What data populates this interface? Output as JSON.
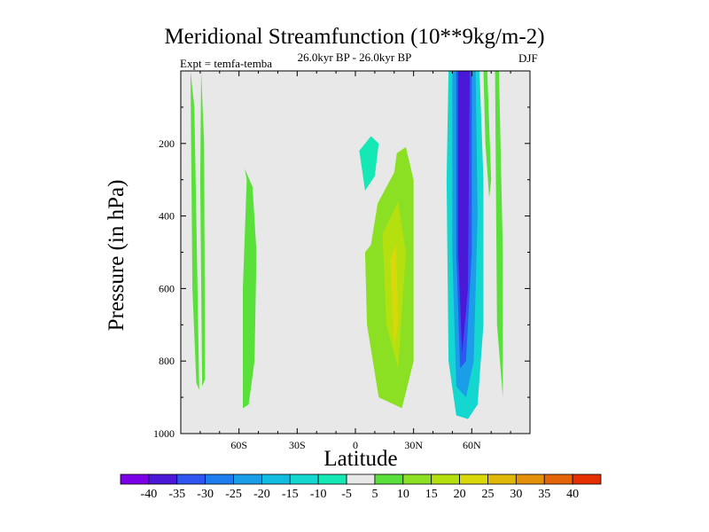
{
  "chart_data": {
    "type": "contour",
    "title": "Meridional Streamfunction (10**9kg/m-2)",
    "experiment_label": "Expt = temfa-temba",
    "period_label": "26.0kyr BP - 26.0kyr BP",
    "season_label": "DJF",
    "xlabel": "Latitude",
    "ylabel": "Pressure (in hPa)",
    "x_ticks": [
      {
        "value": -60,
        "label": "60S"
      },
      {
        "value": -30,
        "label": "30S"
      },
      {
        "value": 0,
        "label": "0"
      },
      {
        "value": 30,
        "label": "30N"
      },
      {
        "value": 60,
        "label": "60N"
      }
    ],
    "y_ticks": [
      {
        "value": 200,
        "label": "200"
      },
      {
        "value": 400,
        "label": "400"
      },
      {
        "value": 600,
        "label": "600"
      },
      {
        "value": 800,
        "label": "800"
      },
      {
        "value": 1000,
        "label": "1000"
      }
    ],
    "xlim": [
      -90,
      90
    ],
    "ylim": [
      0,
      1000
    ],
    "colorbar": {
      "levels": [
        -40,
        -35,
        -30,
        -25,
        -20,
        -15,
        -10,
        -5,
        5,
        10,
        15,
        20,
        25,
        30,
        35,
        40
      ],
      "colors": [
        "#7b00e6",
        "#4b18d8",
        "#2f56f0",
        "#1e7ef0",
        "#1a9ee8",
        "#12bce0",
        "#14d7d0",
        "#14e8b4",
        "#e8e8e8",
        "#5ae03a",
        "#8ce024",
        "#b4e010",
        "#d8d80a",
        "#e0b80a",
        "#e4900a",
        "#e46408",
        "#e43000"
      ]
    },
    "regions": [
      {
        "name": "sh-high-lat-positive",
        "value": 5,
        "x": [
          -85,
          -83,
          -82,
          -80.5,
          -82,
          -84,
          -85
        ],
        "y": [
          0,
          100,
          400,
          880,
          860,
          600,
          0
        ]
      },
      {
        "name": "sh-high-lat-positive-2",
        "value": 5,
        "x": [
          -79.5,
          -78,
          -77.5,
          -79,
          -80
        ],
        "y": [
          0,
          200,
          850,
          870,
          300
        ]
      },
      {
        "name": "sh-mid-lat-positive",
        "value": 5,
        "x": [
          -57,
          -53,
          -51,
          -52,
          -55,
          -58,
          -58,
          -56
        ],
        "y": [
          270,
          320,
          500,
          800,
          920,
          930,
          600,
          300
        ]
      },
      {
        "name": "tropics-positive-band",
        "value": 10,
        "x": [
          8,
          15,
          26,
          30,
          30,
          24,
          12,
          6,
          5
        ],
        "y": [
          480,
          250,
          210,
          300,
          800,
          930,
          900,
          700,
          500
        ]
      },
      {
        "name": "tropics-positive-core",
        "value": 15,
        "x": [
          14,
          22,
          26,
          22,
          16
        ],
        "y": [
          450,
          360,
          500,
          820,
          700
        ]
      },
      {
        "name": "tropics-positive-max",
        "value": 20,
        "x": [
          18,
          21,
          22,
          20
        ],
        "y": [
          520,
          480,
          700,
          760
        ]
      },
      {
        "name": "upper-tropics-negative",
        "value": -5,
        "x": [
          -2,
          10,
          18,
          22,
          20,
          14,
          8,
          2,
          -4
        ],
        "y": [
          170,
          120,
          140,
          200,
          280,
          340,
          400,
          420,
          300
        ]
      },
      {
        "name": "upper-tropics-negative-core",
        "value": -10,
        "x": [
          2,
          8,
          12,
          10,
          5
        ],
        "y": [
          220,
          180,
          200,
          290,
          330
        ]
      },
      {
        "name": "nh-jet-negative-outer",
        "value": -15,
        "x": [
          48,
          64,
          66,
          66,
          63,
          58,
          52,
          48,
          47
        ],
        "y": [
          0,
          0,
          300,
          700,
          920,
          960,
          950,
          800,
          300
        ]
      },
      {
        "name": "nh-jet-negative-mid",
        "value": -25,
        "x": [
          50,
          62,
          63,
          61,
          57,
          52,
          50
        ],
        "y": [
          0,
          0,
          400,
          800,
          900,
          870,
          500
        ]
      },
      {
        "name": "nh-jet-negative-core",
        "value": -35,
        "x": [
          52,
          60,
          60,
          57,
          54,
          52
        ],
        "y": [
          0,
          0,
          500,
          800,
          820,
          500
        ]
      },
      {
        "name": "nh-jet-negative-max",
        "value": -40,
        "x": [
          53,
          59,
          58,
          55,
          53
        ],
        "y": [
          0,
          0,
          600,
          780,
          500
        ]
      },
      {
        "name": "nh-high-lat-positive",
        "value": 5,
        "x": [
          72,
          74,
          76,
          76,
          73
        ],
        "y": [
          0,
          0,
          500,
          900,
          700
        ]
      },
      {
        "name": "nh-high-lat-positive-2",
        "value": 5,
        "x": [
          66,
          68,
          70,
          69,
          67
        ],
        "y": [
          0,
          0,
          300,
          350,
          200
        ]
      }
    ]
  }
}
